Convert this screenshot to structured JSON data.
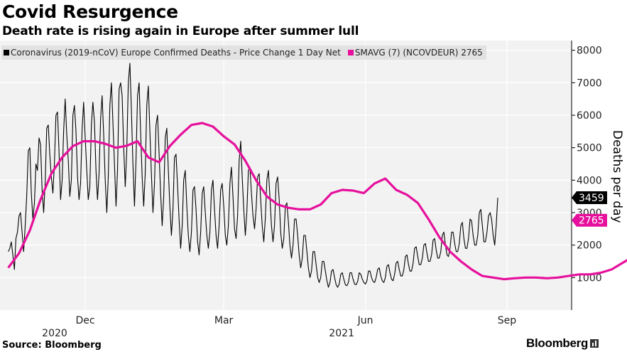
{
  "header": {
    "title": "Covid Resurgence",
    "subtitle": "Death rate is rising again in Europe after summer lull"
  },
  "legend": {
    "series1_label": "Coronavirus (2019-nCoV) Europe Confirmed Deaths - Price Change 1 Day Net",
    "series2_label": "SMAVG (7) (NCOVDEUR) 2765"
  },
  "footer": {
    "source": "Source: Bloomberg",
    "brand": "Bloomberg"
  },
  "colors": {
    "daily": "#000000",
    "average": "#e6109c",
    "plot_background": "#f2f2f2",
    "legend_background": "#e2e2e2"
  },
  "chart_data": {
    "type": "line",
    "ylabel": "Deaths per day",
    "ylim": [
      0,
      8300
    ],
    "y_ticks": [
      1000,
      2000,
      3000,
      4000,
      5000,
      6000,
      7000,
      8000
    ],
    "x_ticks": [
      {
        "date": "2020-12-01",
        "label": "Dec"
      },
      {
        "date": "2021-03-01",
        "label": "Mar"
      },
      {
        "date": "2021-06-01",
        "label": "Jun"
      },
      {
        "date": "2021-09-01",
        "label": "Sep"
      }
    ],
    "year_labels": [
      {
        "date": "2020-12-01",
        "label": "2020"
      },
      {
        "date": "2021-03-01",
        "label": "2021"
      }
    ],
    "grid": true,
    "series": [
      {
        "name": "Coronavirus (2019-nCoV) Europe Confirmed Deaths - Price Change 1 Day Net",
        "role": "daily",
        "frequency": "daily",
        "start_date": "2020-10-12",
        "last_value": 3459,
        "values": [
          1800,
          1900,
          2100,
          1700,
          1250,
          2200,
          2400,
          2900,
          3000,
          2400,
          1800,
          2600,
          3500,
          4900,
          5000,
          3600,
          2800,
          3300,
          4500,
          4300,
          5300,
          5100,
          3700,
          3000,
          3900,
          5600,
          5700,
          4800,
          4100,
          3600,
          4500,
          6000,
          6100,
          4900,
          3400,
          4000,
          5500,
          6500,
          5400,
          4600,
          3500,
          4000,
          6000,
          6300,
          5500,
          4100,
          3400,
          3900,
          5600,
          6400,
          5300,
          4300,
          3400,
          3800,
          5700,
          6400,
          5800,
          4300,
          3400,
          4200,
          5900,
          6600,
          5400,
          4000,
          3000,
          4100,
          6300,
          7000,
          5800,
          4500,
          3200,
          4300,
          6800,
          7000,
          6600,
          5000,
          3800,
          4900,
          7000,
          7600,
          6200,
          4500,
          3200,
          4600,
          6600,
          7000,
          5500,
          4100,
          3200,
          4200,
          6300,
          6900,
          5500,
          4200,
          3000,
          3900,
          5700,
          6000,
          4800,
          3600,
          2600,
          3500,
          5300,
          5600,
          4300,
          3200,
          2300,
          3100,
          4700,
          4800,
          3800,
          2800,
          1900,
          2600,
          4000,
          4300,
          3200,
          2300,
          1800,
          2400,
          3700,
          3800,
          3100,
          2100,
          1700,
          2400,
          3600,
          3800,
          3000,
          2300,
          1900,
          2400,
          3700,
          4000,
          3100,
          2300,
          1900,
          2600,
          3700,
          3900,
          3200,
          2300,
          2000,
          2600,
          3900,
          4400,
          3500,
          2500,
          2200,
          2900,
          4600,
          5200,
          4100,
          3100,
          2300,
          3000,
          4300,
          4400,
          3600,
          2900,
          2500,
          3100,
          4100,
          4200,
          3400,
          2600,
          2100,
          2800,
          4000,
          4300,
          3500,
          2600,
          2100,
          2600,
          3900,
          4100,
          3400,
          2400,
          1900,
          2200,
          3200,
          3300,
          2700,
          2000,
          1600,
          2000,
          2800,
          2800,
          2300,
          1700,
          1300,
          1600,
          2300,
          2300,
          1800,
          1300,
          1000,
          1200,
          1800,
          1800,
          1400,
          1000,
          850,
          1000,
          1500,
          1500,
          1200,
          900,
          700,
          850,
          1200,
          1250,
          1000,
          780,
          700,
          800,
          1100,
          1150,
          950,
          780,
          750,
          850,
          1150,
          1150,
          950,
          800,
          780,
          880,
          1150,
          1100,
          950,
          850,
          800,
          900,
          1200,
          1200,
          1000,
          880,
          850,
          1000,
          1250,
          1300,
          1050,
          900,
          850,
          1000,
          1350,
          1400,
          1150,
          950,
          900,
          1100,
          1450,
          1500,
          1250,
          1050,
          1050,
          1250,
          1650,
          1700,
          1400,
          1200,
          1200,
          1450,
          1900,
          1950,
          1650,
          1400,
          1400,
          1600,
          2000,
          2050,
          1750,
          1500,
          1500,
          1700,
          2150,
          2200,
          1850,
          1600,
          1600,
          1800,
          2300,
          2400,
          2000,
          1700,
          1650,
          1900,
          2400,
          2400,
          2050,
          1800,
          1800,
          2050,
          2600,
          2700,
          2200,
          1900,
          1900,
          2200,
          2800,
          2750,
          2300,
          2000,
          2000,
          2300,
          3000,
          3100,
          2600,
          2100,
          2100,
          2400,
          2900,
          3000,
          2800,
          2300,
          2000,
          2600,
          3459
        ]
      },
      {
        "name": "SMAVG (7) (NCOVDEUR) 2765",
        "role": "average",
        "frequency": "weekly",
        "start_date": "2020-10-12",
        "last_value": 2765,
        "values": [
          1300,
          1750,
          2450,
          3400,
          4200,
          4700,
          5050,
          5200,
          5200,
          5120,
          5000,
          5060,
          5200,
          4700,
          4550,
          5050,
          5400,
          5700,
          5760,
          5650,
          5350,
          5100,
          4600,
          4000,
          3500,
          3250,
          3150,
          3100,
          3100,
          3250,
          3600,
          3700,
          3680,
          3600,
          3900,
          4050,
          3700,
          3550,
          3300,
          2800,
          2250,
          1800,
          1500,
          1250,
          1050,
          1000,
          950,
          980,
          1000,
          1000,
          980,
          1000,
          1050,
          1100,
          1100,
          1150,
          1250,
          1450,
          1650,
          1800,
          1850,
          1900,
          2000,
          2050,
          2100,
          2200,
          2400,
          2550,
          2765
        ]
      }
    ]
  }
}
